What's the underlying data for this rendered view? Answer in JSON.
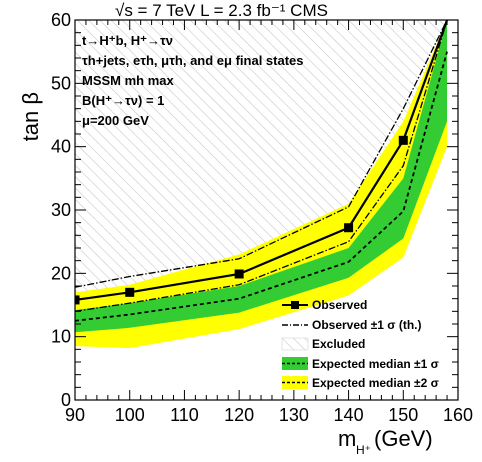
{
  "chart_data": {
    "type": "line",
    "top_label": "√s = 7 TeV   L = 2.3 fb⁻¹  CMS",
    "xlabel": "m",
    "xlabel_sub": "H⁺",
    "xlabel_unit": "(GeV)",
    "ylabel": "tan β",
    "xlim": [
      90,
      160
    ],
    "ylim": [
      0,
      60
    ],
    "xticks": [
      90,
      100,
      110,
      120,
      130,
      140,
      150,
      160
    ],
    "yticks": [
      0,
      10,
      20,
      30,
      40,
      50,
      60
    ],
    "annotations": [
      "t→H⁺b, H⁺→τν",
      "τh+jets, eτh, μτh, and eμ final states",
      "MSSM mh max",
      "B(H⁺→τν) = 1",
      "μ=200 GeV"
    ],
    "legend_position": "bottom-right",
    "x": [
      90,
      100,
      120,
      140,
      150,
      158
    ],
    "series": [
      {
        "name": "Observed",
        "values": [
          15.8,
          17.0,
          19.9,
          27.2,
          41.0,
          60
        ],
        "color": "#000000",
        "style": "solid-markers"
      },
      {
        "name": "Observed ±1 σ (th.)",
        "upper": [
          17.8,
          19.5,
          22.3,
          30.5,
          46.0,
          60
        ],
        "lower": [
          14.0,
          15.3,
          18.2,
          25.0,
          37.0,
          60
        ],
        "color": "#000000",
        "style": "dashdot"
      },
      {
        "name": "Expected median ±1 σ",
        "median": [
          12.5,
          13.5,
          16.0,
          21.8,
          29.8,
          55
        ],
        "upper": [
          14.2,
          15.3,
          18.0,
          24.0,
          35.0,
          60
        ],
        "lower": [
          10.7,
          11.4,
          13.8,
          19.3,
          25.5,
          44
        ],
        "color": "#33cc33",
        "style": "band"
      },
      {
        "name": "Expected median ±2 σ",
        "upper": [
          17.0,
          18.2,
          23.0,
          31.0,
          44.0,
          60
        ],
        "lower": [
          8.5,
          8.2,
          11.2,
          16.5,
          22.5,
          40
        ],
        "color": "#ffff00",
        "style": "band"
      },
      {
        "name": "Excluded",
        "color": "#bbbbbb",
        "style": "hatch"
      }
    ]
  }
}
